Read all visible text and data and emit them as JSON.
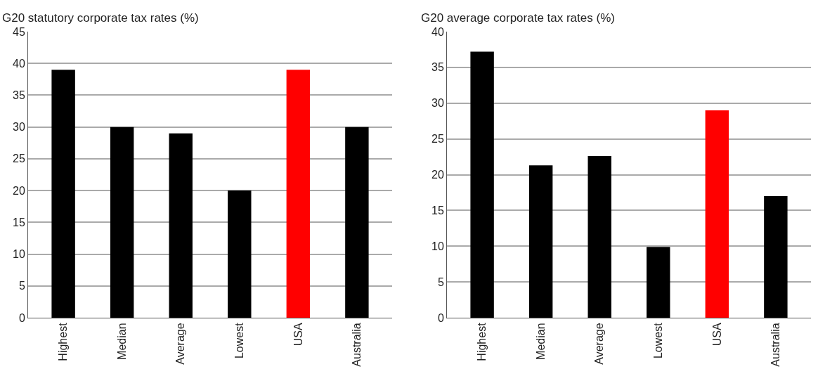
{
  "chart_data": [
    {
      "type": "bar",
      "title": "G20 statutory corporate tax rates (%)",
      "categories": [
        "Highest",
        "Median",
        "Average",
        "Lowest",
        "USA",
        "Australia"
      ],
      "values": [
        39,
        30,
        29,
        20,
        39,
        30
      ],
      "colors": [
        "#000000",
        "#000000",
        "#000000",
        "#000000",
        "#ff0000",
        "#000000"
      ],
      "ylim": [
        0,
        45
      ],
      "yticks": [
        0,
        5,
        10,
        15,
        20,
        25,
        30,
        35,
        40,
        45
      ],
      "grid": "y"
    },
    {
      "type": "bar",
      "title": "G20 average corporate tax rates (%)",
      "categories": [
        "Highest",
        "Median",
        "Average",
        "Lowest",
        "USA",
        "Australia"
      ],
      "values": [
        37.2,
        21.3,
        22.6,
        9.9,
        29,
        17
      ],
      "colors": [
        "#000000",
        "#000000",
        "#000000",
        "#000000",
        "#ff0000",
        "#000000"
      ],
      "ylim": [
        0,
        40
      ],
      "yticks": [
        0,
        5,
        10,
        15,
        20,
        25,
        30,
        35,
        40
      ],
      "grid": "y"
    }
  ]
}
